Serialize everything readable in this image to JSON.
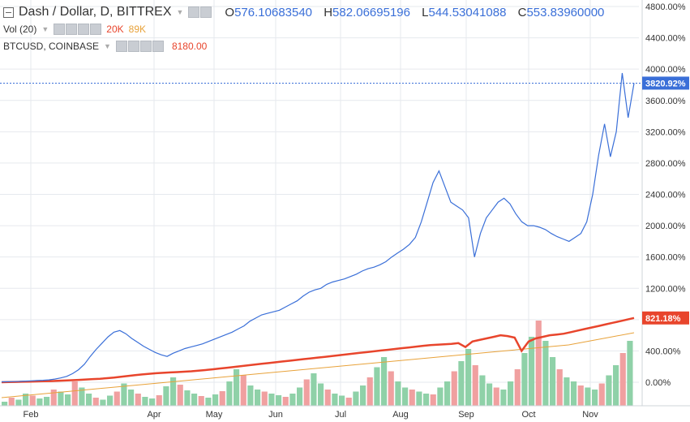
{
  "legend": {
    "main": {
      "title": "Dash / Dollar, D, BITTREX",
      "open_label": "O",
      "open": "576.10683540",
      "high_label": "H",
      "high": "582.06695196",
      "low_label": "L",
      "low": "544.53041088",
      "close_label": "C",
      "close": "553.83960000"
    },
    "volume": {
      "title": "Vol (20)",
      "value1": "20K",
      "value2": "89K"
    },
    "compare": {
      "title": "BTCUSD, COINBASE",
      "value": "8180.00"
    }
  },
  "colors": {
    "dash": "#3a6fd8",
    "btc": "#e8452c",
    "vol_ma": "#e8a23a",
    "vol_up": "#8fd1a8",
    "vol_down": "#f0a0a0",
    "grid": "#e6e9ee",
    "axis_text": "#333333"
  },
  "chart_data": {
    "type": "line",
    "x_ticks": [
      "Feb",
      "Apr",
      "May",
      "Jun",
      "Jul",
      "Aug",
      "Sep",
      "Oct",
      "Nov"
    ],
    "y_ticks": [
      "4800.00%",
      "4400.00%",
      "4000.00%",
      "3600.00%",
      "3200.00%",
      "2800.00%",
      "2400.00%",
      "2000.00%",
      "1600.00%",
      "1200.00%",
      "800.00%",
      "400.00%",
      "0.00%"
    ],
    "ylim": [
      -200,
      4850
    ],
    "grid": true,
    "series": [
      {
        "name": "Dash / Dollar",
        "last_label": "3820.92%",
        "values": [
          5,
          6,
          8,
          10,
          14,
          18,
          22,
          25,
          30,
          40,
          55,
          75,
          110,
          160,
          230,
          330,
          420,
          500,
          580,
          640,
          660,
          620,
          560,
          510,
          460,
          420,
          380,
          350,
          330,
          370,
          400,
          430,
          450,
          470,
          490,
          520,
          550,
          580,
          610,
          640,
          680,
          720,
          780,
          820,
          860,
          880,
          900,
          920,
          960,
          1000,
          1040,
          1100,
          1150,
          1180,
          1200,
          1250,
          1280,
          1300,
          1320,
          1350,
          1380,
          1420,
          1450,
          1470,
          1500,
          1540,
          1600,
          1650,
          1700,
          1760,
          1850,
          2050,
          2300,
          2550,
          2700,
          2500,
          2300,
          2250,
          2200,
          2100,
          1600,
          1900,
          2100,
          2200,
          2300,
          2350,
          2280,
          2150,
          2050,
          2000,
          2000,
          1980,
          1950,
          1900,
          1860,
          1830,
          1800,
          1850,
          1900,
          2050,
          2400,
          2900,
          3300,
          2880,
          3200,
          3950,
          3380,
          3820.92
        ]
      },
      {
        "name": "BTCUSD, COINBASE",
        "last_label": "821.18%",
        "values": [
          0,
          2,
          4,
          6,
          8,
          10,
          12,
          15,
          18,
          22,
          26,
          30,
          35,
          40,
          45,
          52,
          60,
          70,
          80,
          90,
          100,
          108,
          115,
          120,
          125,
          130,
          135,
          140,
          148,
          155,
          165,
          175,
          185,
          195,
          205,
          215,
          225,
          235,
          245,
          255,
          265,
          275,
          285,
          295,
          305,
          315,
          325,
          335,
          345,
          355,
          365,
          375,
          385,
          395,
          405,
          415,
          425,
          435,
          445,
          455,
          465,
          475,
          480,
          485,
          490,
          500,
          450,
          520,
          540,
          560,
          580,
          600,
          590,
          570,
          400,
          520,
          560,
          580,
          600,
          610,
          620,
          640,
          660,
          680,
          700,
          720,
          740,
          760,
          780,
          800,
          821.18
        ]
      }
    ]
  },
  "volume_data": {
    "ma_values": [
      20,
      25,
      30,
      35,
      40,
      45,
      50,
      55,
      60,
      65,
      70,
      75,
      80,
      85,
      90,
      95,
      100,
      105,
      110,
      115,
      120,
      125,
      130,
      135,
      140,
      145,
      150,
      160,
      170,
      180
    ],
    "bar_values": [
      10,
      20,
      15,
      30,
      25,
      18,
      22,
      40,
      35,
      28,
      60,
      45,
      30,
      20,
      15,
      25,
      35,
      55,
      40,
      30,
      22,
      18,
      26,
      48,
      70,
      52,
      38,
      30,
      24,
      20,
      28,
      36,
      60,
      90,
      75,
      50,
      40,
      35,
      30,
      26,
      22,
      30,
      45,
      65,
      80,
      55,
      40,
      30,
      25,
      20,
      35,
      50,
      70,
      95,
      120,
      85,
      60,
      45,
      40,
      35,
      30,
      28,
      45,
      60,
      85,
      110,
      140,
      100,
      75,
      55,
      45,
      40,
      60,
      90,
      130,
      170,
      210,
      160,
      120,
      90,
      70,
      60,
      50,
      45,
      40,
      55,
      75,
      100,
      130,
      160
    ]
  }
}
